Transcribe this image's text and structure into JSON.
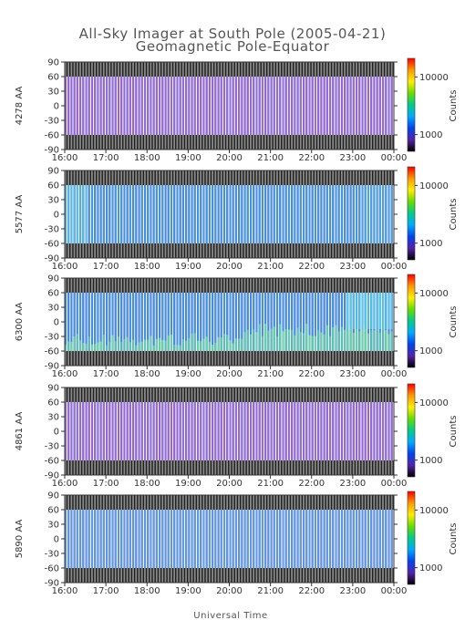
{
  "figure": {
    "title_line1": "All-Sky Imager at South Pole (2005-04-21)",
    "title_line2": "Geomagnetic Pole-Equator",
    "xlabel": "Universal Time"
  },
  "chart_data": [
    {
      "type": "heatmap",
      "ylabel": "4278 AA",
      "x_ticks": [
        "16:00",
        "17:00",
        "18:00",
        "19:00",
        "20:00",
        "21:00",
        "22:00",
        "23:00",
        "00:00"
      ],
      "y_ticks": [
        "90",
        "60",
        "30",
        "0",
        "-30",
        "-60",
        "-90"
      ],
      "ylim": [
        -90,
        90
      ],
      "data_lat_range": [
        -60,
        60
      ],
      "base_color": "#9a5ad8",
      "pattern": "uniform",
      "colorbar": {
        "label": "Counts",
        "ticks": [
          "10000",
          "1000"
        ],
        "scale": "log"
      }
    },
    {
      "type": "heatmap",
      "ylabel": "5577 AA",
      "x_ticks": [
        "16:00",
        "17:00",
        "18:00",
        "19:00",
        "20:00",
        "21:00",
        "22:00",
        "23:00",
        "00:00"
      ],
      "y_ticks": [
        "90",
        "60",
        "30",
        "0",
        "-30",
        "-60",
        "-90"
      ],
      "ylim": [
        -90,
        90
      ],
      "data_lat_range": [
        -60,
        60
      ],
      "base_color": "#3c8ae6",
      "pattern": "bright-start",
      "colorbar": {
        "label": "Counts",
        "ticks": [
          "10000",
          "1000"
        ],
        "scale": "log"
      }
    },
    {
      "type": "heatmap",
      "ylabel": "6300 AA",
      "x_ticks": [
        "16:00",
        "17:00",
        "18:00",
        "19:00",
        "20:00",
        "21:00",
        "22:00",
        "23:00",
        "00:00"
      ],
      "y_ticks": [
        "90",
        "60",
        "30",
        "0",
        "-30",
        "-60",
        "-90"
      ],
      "ylim": [
        -90,
        90
      ],
      "data_lat_range": [
        -60,
        60
      ],
      "base_color": "#3c86e8",
      "pattern": "bright-south",
      "colorbar": {
        "label": "Counts",
        "ticks": [
          "10000",
          "1000"
        ],
        "scale": "log"
      }
    },
    {
      "type": "heatmap",
      "ylabel": "4861 AA",
      "x_ticks": [
        "16:00",
        "17:00",
        "18:00",
        "19:00",
        "20:00",
        "21:00",
        "22:00",
        "23:00",
        "00:00"
      ],
      "y_ticks": [
        "90",
        "60",
        "30",
        "0",
        "-30",
        "-60",
        "-90"
      ],
      "ylim": [
        -90,
        90
      ],
      "data_lat_range": [
        -60,
        60
      ],
      "base_color": "#9a5ad8",
      "pattern": "uniform",
      "colorbar": {
        "label": "Counts",
        "ticks": [
          "10000",
          "1000"
        ],
        "scale": "log"
      }
    },
    {
      "type": "heatmap",
      "ylabel": "5890 AA",
      "x_ticks": [
        "16:00",
        "17:00",
        "18:00",
        "19:00",
        "20:00",
        "21:00",
        "22:00",
        "23:00",
        "00:00"
      ],
      "y_ticks": [
        "90",
        "60",
        "30",
        "0",
        "-30",
        "-60",
        "-90"
      ],
      "ylim": [
        -90,
        90
      ],
      "data_lat_range": [
        -60,
        60
      ],
      "base_color": "#5a90ea",
      "pattern": "uniform",
      "colorbar": {
        "label": "Counts",
        "ticks": [
          "10000",
          "1000"
        ],
        "scale": "log"
      }
    }
  ]
}
